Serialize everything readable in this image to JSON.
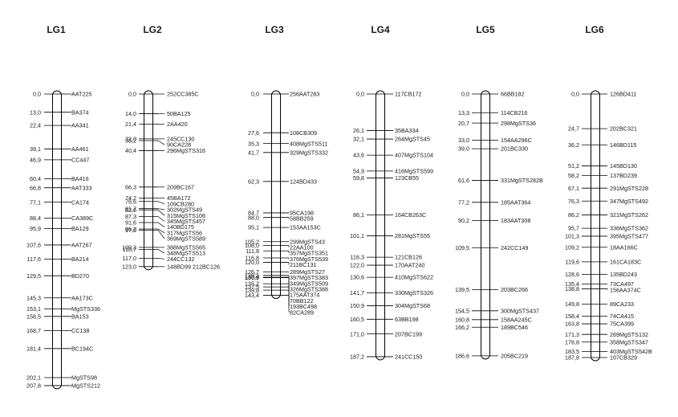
{
  "groups": [
    {
      "name": "LG1",
      "loci": [
        [
          "0,0",
          "AAT225"
        ],
        [
          "13,0",
          "BA374"
        ],
        [
          "22,4",
          "AA341"
        ],
        [
          "39,1",
          "AA461"
        ],
        [
          "46,9",
          "CC447"
        ],
        [
          "60,4",
          "BA416"
        ],
        [
          "66,8",
          "AAT333"
        ],
        [
          "77,1",
          "CA174"
        ],
        [
          "88,4",
          "CA389C"
        ],
        [
          "95,9",
          "BA129"
        ],
        [
          "107,6",
          "AAT267"
        ],
        [
          "117,6",
          "BA214"
        ],
        [
          "129,5",
          "BD270"
        ],
        [
          "145,3",
          "AA173C"
        ],
        [
          "153,1",
          "MgSTS336"
        ],
        [
          "158,5",
          "BA153"
        ],
        [
          "168,7",
          "CC138"
        ],
        [
          "181,4",
          "BC194C"
        ],
        [
          "202,1",
          "MgSTS98"
        ],
        [
          "207,8",
          "MgSTS212"
        ]
      ]
    },
    {
      "name": "LG2",
      "loci": [
        [
          "0,0",
          "252CC385C"
        ],
        [
          "14,0",
          "50BA125"
        ],
        [
          "21,4",
          "2AA420"
        ],
        [
          "32,0",
          "245CC130"
        ],
        [
          "33,2",
          "90CA228"
        ],
        [
          "40,4",
          "296MgSTS316"
        ],
        [
          "66,3",
          "209BC167"
        ],
        [
          "74,2",
          "45BA172"
        ],
        [
          "76,6",
          "109CB280"
        ],
        [
          "81,7",
          "302MgSTS49"
        ],
        [
          "82,6",
          "315MgSTS106"
        ],
        [
          "87,3",
          "345MgSTS457"
        ],
        [
          "91,6",
          "140BD175"
        ],
        [
          "96,2",
          "317MgSTS56"
        ],
        [
          "97,0",
          "369MgSTS589"
        ],
        [
          "109,3",
          "388MgSTS565"
        ],
        [
          "110,7",
          "348MgSTS513"
        ],
        [
          "117,0",
          "244CC132"
        ],
        [
          "123,0",
          "148BD99 212BC126"
        ]
      ]
    },
    {
      "name": "LG3",
      "loci": [
        [
          "0,0",
          "256AAT283"
        ],
        [
          "27,6",
          "108CB309"
        ],
        [
          "35,3",
          "408MgSTS511"
        ],
        [
          "41,7",
          "329MgSTS332"
        ],
        [
          "62,3",
          "124BD433"
        ],
        [
          "84,7",
          "95CA198"
        ],
        [
          "88,0",
          "58BB259"
        ],
        [
          "95,1",
          "153AA153C"
        ],
        [
          "105,2",
          "299MgSTS43"
        ],
        [
          "108,0",
          "22AA100"
        ],
        [
          "111,8",
          "357MgSTS351"
        ],
        [
          "116,8",
          "376MgSTS539"
        ],
        [
          "120,0",
          "211BC131"
        ],
        [
          "126,7",
          "289MgSTS27"
        ],
        [
          "129,3",
          "397MgSTS383"
        ],
        [
          "130,6",
          "349MgSTS509"
        ],
        [
          "130,9",
          "326MgSTS388"
        ],
        [
          "135,2",
          "175AAT374"
        ],
        [
          "137,5",
          "70BB122"
        ],
        [
          "139,8",
          "193BC498"
        ],
        [
          "143,4",
          "82CA289"
        ]
      ]
    },
    {
      "name": "LG4",
      "loci": [
        [
          "0,0",
          "117CB172"
        ],
        [
          "26,1",
          "35BA334"
        ],
        [
          "32,1",
          "264MgSTS45"
        ],
        [
          "43,6",
          "407MgSTS104"
        ],
        [
          "54,9",
          "416MgSTS599"
        ],
        [
          "59,8",
          "123CB55"
        ],
        [
          "86,1",
          "164CB263C"
        ],
        [
          "101,1",
          "281MgSTS55"
        ],
        [
          "116,3",
          "121CB126"
        ],
        [
          "122,0",
          "170AAT240"
        ],
        [
          "130,6",
          "410MgSTS622"
        ],
        [
          "141,7",
          "330MgSTS326"
        ],
        [
          "150,9",
          "304MgSTS68"
        ],
        [
          "160,5",
          "63BB198"
        ],
        [
          "171,0",
          "207BC199"
        ],
        [
          "187,2",
          "241CC150"
        ]
      ]
    },
    {
      "name": "LG5",
      "loci": [
        [
          "0,0",
          "66BB182"
        ],
        [
          "13,3",
          "114CB216"
        ],
        [
          "20,7",
          "298MgSTS36"
        ],
        [
          "33,0",
          "154AA296C"
        ],
        [
          "39,0",
          "201BC330"
        ],
        [
          "61,6",
          "331MgSTS282B"
        ],
        [
          "77,2",
          "185AAT364"
        ],
        [
          "90,2",
          "183AAT308"
        ],
        [
          "109,5",
          "242CC149"
        ],
        [
          "139,5",
          "203BC266"
        ],
        [
          "154,5",
          "300MgSTS437"
        ],
        [
          "160,8",
          "158AA245C"
        ],
        [
          "166,2",
          "189BC546"
        ],
        [
          "186,6",
          "205BC219"
        ]
      ]
    },
    {
      "name": "LG6",
      "loci": [
        [
          "0,0",
          "126BD411"
        ],
        [
          "24,7",
          "202BC321"
        ],
        [
          "36,2",
          "146BD115"
        ],
        [
          "51,2",
          "145BD130"
        ],
        [
          "58,2",
          "137BD239"
        ],
        [
          "67,1",
          "291MgSTS228"
        ],
        [
          "76,3",
          "347MgSTS492"
        ],
        [
          "86,2",
          "321MgSTS262"
        ],
        [
          "95,7",
          "336MgSTS362"
        ],
        [
          "101,3",
          "395MgSTS477"
        ],
        [
          "109,2",
          "18AA166C"
        ],
        [
          "119,6",
          "161CA183C"
        ],
        [
          "128,6",
          "135BD243"
        ],
        [
          "135,4",
          "73CA497"
        ],
        [
          "138,8",
          "156AA374C"
        ],
        [
          "149,8",
          "89CA233"
        ],
        [
          "158,4",
          "74CA415"
        ],
        [
          "163,8",
          "75CA399"
        ],
        [
          "171,3",
          "269MgSTS132"
        ],
        [
          "176,8",
          "358MgSTS347"
        ],
        [
          "183,5",
          "403MgSTS542B"
        ],
        [
          "187,8",
          "107CB329"
        ]
      ]
    }
  ]
}
